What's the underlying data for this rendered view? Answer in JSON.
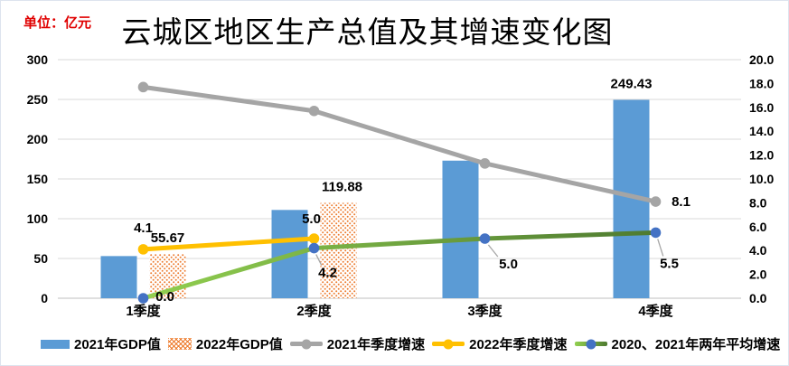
{
  "header": {
    "unit_label": "单位：亿元",
    "title": "云城区地区生产总值及其增速变化图"
  },
  "chart_data": {
    "type": "combo bar + line, dual y-axis",
    "categories": [
      "1季度",
      "2季度",
      "3季度",
      "4季度"
    ],
    "left_axis": {
      "min": 0,
      "max": 300,
      "step": 50,
      "tick_labels": [
        "0",
        "50",
        "100",
        "150",
        "200",
        "250",
        "300"
      ]
    },
    "right_axis": {
      "min": 0,
      "max": 20,
      "step": 2,
      "tick_labels": [
        "0.0",
        "2.0",
        "4.0",
        "6.0",
        "8.0",
        "10.0",
        "12.0",
        "14.0",
        "16.0",
        "18.0",
        "20.0"
      ]
    },
    "grid": "horizontal gridlines on",
    "legend_position": "bottom",
    "series": [
      {
        "name": "2021年GDP值",
        "type": "bar",
        "axis": "left",
        "color": "#5B9BD5",
        "values": [
          53,
          111,
          173,
          249.43
        ],
        "labels": [
          {
            "i": 3,
            "text": "249.43",
            "dx": 0,
            "dy": -13
          }
        ]
      },
      {
        "name": "2022年GDP值",
        "type": "bar-pattern",
        "axis": "left",
        "color": "#ED7D31",
        "values": [
          55.67,
          119.88,
          null,
          null
        ],
        "labels": [
          {
            "i": 0,
            "text": "55.67",
            "dx": 0,
            "dy": -13
          },
          {
            "i": 1,
            "text": "119.88",
            "dx": 4,
            "dy": -13
          }
        ]
      },
      {
        "name": "2021年季度增速",
        "type": "line",
        "axis": "right",
        "color": "#A5A5A5",
        "values": [
          17.7,
          15.7,
          11.3,
          8.1
        ],
        "labels": [
          {
            "i": 3,
            "text": "8.1",
            "dx": 28,
            "dy": 5
          }
        ]
      },
      {
        "name": "2022年季度增速",
        "type": "line",
        "axis": "right",
        "color": "#FFC000",
        "values": [
          4.1,
          5.0,
          null,
          null
        ],
        "labels": [
          {
            "i": 0,
            "text": "4.1",
            "dx": 0,
            "dy": -19
          },
          {
            "i": 1,
            "text": "5.0",
            "dx": -3,
            "dy": -17
          }
        ]
      },
      {
        "name": "2020、2021年两年平均增速",
        "type": "line-gradient",
        "axis": "right",
        "color": "#92D050",
        "color2": "#4E7A30",
        "marker_color": "#4472C4",
        "values": [
          0.0,
          4.2,
          5.0,
          5.5
        ],
        "labels": [
          {
            "i": 0,
            "text": "0.0",
            "dx": 24,
            "dy": 3
          },
          {
            "i": 1,
            "text": "4.2",
            "dx": 15,
            "dy": 32,
            "leader": true
          },
          {
            "i": 2,
            "text": "5.0",
            "dx": 26,
            "dy": 33,
            "leader": true
          },
          {
            "i": 3,
            "text": "5.5",
            "dx": 15,
            "dy": 39,
            "leader": true
          }
        ]
      }
    ]
  }
}
